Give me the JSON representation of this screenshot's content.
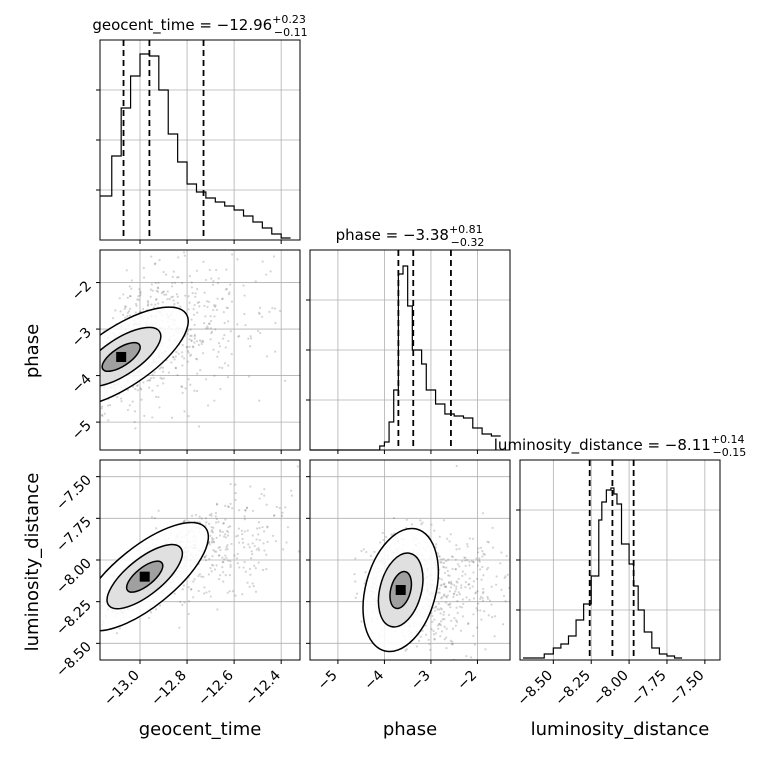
{
  "chart_data": [
    {
      "type": "histogram",
      "panel": "geocent_time-marginal",
      "title": {
        "name": "geocent_time",
        "median": "−12.96",
        "plus": "+0.23",
        "minus": "−0.11"
      },
      "x": [
        -13.17,
        -13.15,
        -13.12,
        -13.1,
        -13.08,
        -13.06,
        -13.04,
        -13.02,
        -13.0,
        -12.98,
        -12.96,
        -12.94,
        -12.92,
        -12.9,
        -12.88,
        -12.86,
        -12.84,
        -12.82,
        -12.8,
        -12.78,
        -12.76,
        -12.74,
        -12.72,
        -12.7,
        -12.68,
        -12.66,
        -12.64,
        -12.62,
        -12.6,
        -12.58,
        -12.56,
        -12.54,
        -12.52,
        -12.5,
        -12.48,
        -12.46,
        -12.44,
        -12.42,
        -12.4,
        -12.38,
        -12.36
      ],
      "values": [
        0.22,
        0.22,
        0.42,
        0.42,
        0.66,
        0.66,
        0.82,
        0.82,
        0.93,
        0.93,
        0.92,
        0.92,
        0.75,
        0.75,
        0.53,
        0.53,
        0.39,
        0.39,
        0.28,
        0.28,
        0.24,
        0.24,
        0.21,
        0.21,
        0.19,
        0.19,
        0.17,
        0.17,
        0.15,
        0.15,
        0.12,
        0.12,
        0.09,
        0.09,
        0.06,
        0.06,
        0.03,
        0.03,
        0.01,
        0.01
      ],
      "quantiles": [
        -13.07,
        -12.96,
        -12.73
      ],
      "xlim": [
        -13.17,
        -12.32
      ],
      "ylim": [
        0,
        1
      ],
      "grid": true
    },
    {
      "type": "histogram",
      "panel": "phase-marginal",
      "title": {
        "name": "phase",
        "median": "−3.38",
        "plus": "+0.81",
        "minus": "−0.32"
      },
      "x": [
        -5.6,
        -4.2,
        -4.1,
        -4.0,
        -3.9,
        -3.8,
        -3.7,
        -3.6,
        -3.5,
        -3.4,
        -3.3,
        -3.2,
        -3.1,
        -3.0,
        -2.9,
        -2.8,
        -2.7,
        -2.6,
        -2.5,
        -2.4,
        -2.3,
        -2.2,
        -2.1,
        -2.0,
        -1.9,
        -1.8,
        -1.7,
        -1.6,
        -1.5
      ],
      "values": [
        0.0,
        0.0,
        0.02,
        0.04,
        0.14,
        0.3,
        0.88,
        0.92,
        0.72,
        0.5,
        0.5,
        0.43,
        0.3,
        0.3,
        0.23,
        0.23,
        0.18,
        0.18,
        0.17,
        0.17,
        0.16,
        0.16,
        0.11,
        0.11,
        0.08,
        0.08,
        0.07,
        0.07
      ],
      "quantiles": [
        -3.7,
        -3.38,
        -2.57
      ],
      "xlim": [
        -5.6,
        -1.3
      ],
      "ylim": [
        0,
        1
      ],
      "grid": true
    },
    {
      "type": "histogram",
      "panel": "luminosity_distance-marginal",
      "title": {
        "name": "luminosity_distance",
        "median": "−8.11",
        "plus": "+0.14",
        "minus": "−0.15"
      },
      "x": [
        -8.7,
        -8.56,
        -8.5,
        -8.45,
        -8.4,
        -8.35,
        -8.3,
        -8.25,
        -8.2,
        -8.18,
        -8.15,
        -8.12,
        -8.1,
        -8.08,
        -8.05,
        -8.0,
        -7.97,
        -7.94,
        -7.9,
        -7.85,
        -7.8,
        -7.75,
        -7.7,
        -7.65
      ],
      "values": [
        0.01,
        0.03,
        0.06,
        0.08,
        0.12,
        0.2,
        0.28,
        0.42,
        0.7,
        0.79,
        0.85,
        0.86,
        0.83,
        0.78,
        0.58,
        0.48,
        0.37,
        0.25,
        0.14,
        0.06,
        0.03,
        0.02,
        0.01
      ],
      "quantiles": [
        -8.26,
        -8.11,
        -7.97
      ],
      "xlim": [
        -8.72,
        -7.4
      ],
      "ylim": [
        0,
        1
      ],
      "grid": true
    },
    {
      "type": "scatter-contour",
      "panel": "geocent_time-vs-phase",
      "x_param": "geocent_time",
      "y_param": "phase",
      "xlim": [
        -13.17,
        -12.32
      ],
      "ylim": [
        -5.6,
        -1.3
      ],
      "mode": {
        "x": -13.08,
        "y": -3.6
      },
      "grid": true
    },
    {
      "type": "scatter-contour",
      "panel": "geocent_time-vs-luminosity_distance",
      "x_param": "geocent_time",
      "y_param": "luminosity_distance",
      "xlim": [
        -13.17,
        -12.32
      ],
      "ylim": [
        -8.6,
        -7.4
      ],
      "mode": {
        "x": -12.98,
        "y": -8.1
      },
      "grid": true
    },
    {
      "type": "scatter-contour",
      "panel": "phase-vs-luminosity_distance",
      "x_param": "phase",
      "y_param": "luminosity_distance",
      "xlim": [
        -5.6,
        -1.3
      ],
      "ylim": [
        -8.6,
        -7.4
      ],
      "mode": {
        "x": -3.65,
        "y": -8.18
      },
      "grid": true
    }
  ],
  "axes": {
    "geocent_time": {
      "label": "geocent_time",
      "ticks": [
        -13.0,
        -12.8,
        -12.6,
        -12.4
      ],
      "tick_labels": [
        "−13.0",
        "−12.8",
        "−12.6",
        "−12.4"
      ]
    },
    "phase": {
      "label": "phase",
      "ticks": [
        -5,
        -4,
        -3,
        -2
      ],
      "tick_labels": [
        "−5",
        "−4",
        "−3",
        "−2"
      ]
    },
    "luminosity_distance": {
      "label": "luminosity_distance",
      "ticks": [
        -8.5,
        -8.25,
        -8.0,
        -7.75,
        -7.5
      ],
      "tick_labels": [
        "−8.50",
        "−8.25",
        "−8.00",
        "−7.75",
        "−7.50"
      ]
    }
  },
  "colors": {
    "line": "#000000",
    "grid": "#b0b0b0",
    "scatter": "#555555",
    "density": "#000000"
  }
}
